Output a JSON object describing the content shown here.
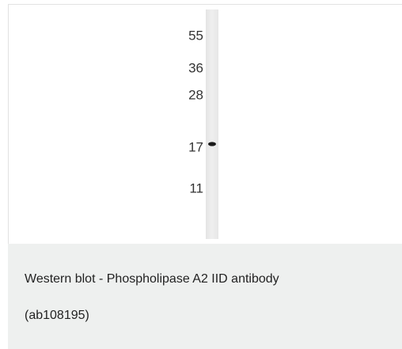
{
  "figure": {
    "markers": [
      55,
      36,
      28,
      17,
      11
    ]
  },
  "caption": {
    "title": "Western blot - Phospholipase A2 IID antibody",
    "code": "(ab108195)"
  }
}
